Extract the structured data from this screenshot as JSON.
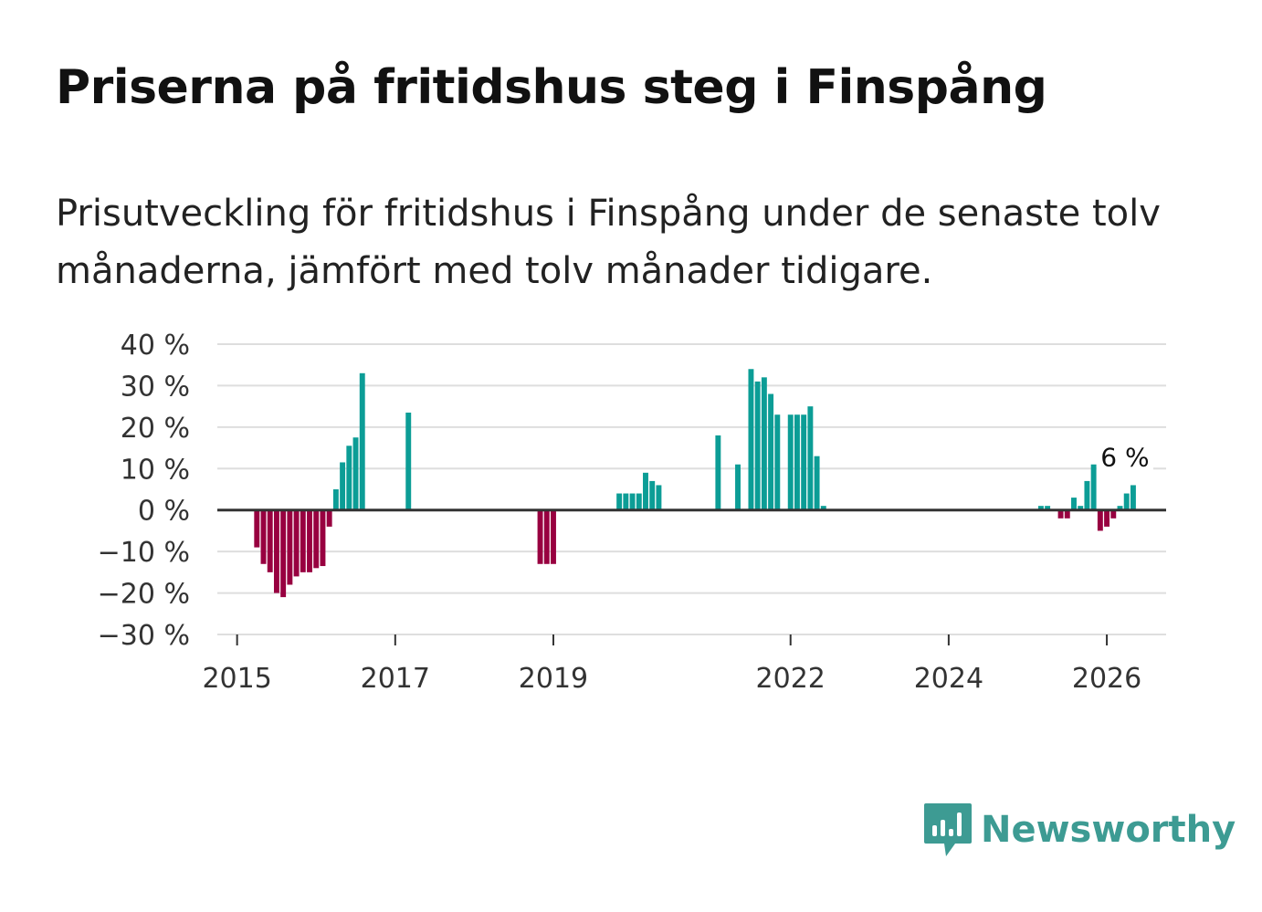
{
  "title": "Priserna på fritidshus steg i Finspång",
  "subtitle": "Prisutveckling för fritidshus i Finspång under de senaste tolv månaderna, jämfört med tolv månader tidigare.",
  "brand": {
    "name": "Newsworthy",
    "color": "#3d9b93",
    "icon": "newsworthy-logo-icon"
  },
  "colors": {
    "positive": "#0c9d96",
    "negative": "#980040",
    "grid": "#dedede",
    "axis": "#333333"
  },
  "chart_data": {
    "type": "bar",
    "title": "Priserna på fritidshus steg i Finspång",
    "ylabel": "",
    "xlabel": "",
    "ylim": [
      -30,
      40
    ],
    "y_ticks": [
      40,
      30,
      20,
      10,
      0,
      -10,
      -20,
      -30
    ],
    "y_tick_labels": [
      "40 %",
      "30 %",
      "20 %",
      "10 %",
      "0 %",
      "−10 %",
      "−20 %",
      "−30 %"
    ],
    "x_ticks": [
      2015,
      2017,
      2019,
      2022,
      2024,
      2026
    ],
    "x_range": [
      2014.75,
      2026.75
    ],
    "last_value_label": "6 %",
    "series": [
      {
        "name": "Prisutveckling",
        "points": [
          {
            "date": "2015-04",
            "value": -9
          },
          {
            "date": "2015-05",
            "value": -13
          },
          {
            "date": "2015-06",
            "value": -15
          },
          {
            "date": "2015-07",
            "value": -20
          },
          {
            "date": "2015-08",
            "value": -21
          },
          {
            "date": "2015-09",
            "value": -18
          },
          {
            "date": "2015-10",
            "value": -16
          },
          {
            "date": "2015-11",
            "value": -15
          },
          {
            "date": "2015-12",
            "value": -15
          },
          {
            "date": "2016-01",
            "value": -14
          },
          {
            "date": "2016-02",
            "value": -13.5
          },
          {
            "date": "2016-03",
            "value": -4
          },
          {
            "date": "2016-04",
            "value": 5
          },
          {
            "date": "2016-05",
            "value": 11.5
          },
          {
            "date": "2016-06",
            "value": 15.5
          },
          {
            "date": "2016-07",
            "value": 17.5
          },
          {
            "date": "2016-08",
            "value": 33
          },
          {
            "date": "2017-03",
            "value": 23.5
          },
          {
            "date": "2018-11",
            "value": -13
          },
          {
            "date": "2018-12",
            "value": -13
          },
          {
            "date": "2019-01",
            "value": -13
          },
          {
            "date": "2019-11",
            "value": 4
          },
          {
            "date": "2019-12",
            "value": 4
          },
          {
            "date": "2020-01",
            "value": 4
          },
          {
            "date": "2020-02",
            "value": 4
          },
          {
            "date": "2020-03",
            "value": 9
          },
          {
            "date": "2020-04",
            "value": 7
          },
          {
            "date": "2020-05",
            "value": 6
          },
          {
            "date": "2021-02",
            "value": 18
          },
          {
            "date": "2021-05",
            "value": 11
          },
          {
            "date": "2021-07",
            "value": 34
          },
          {
            "date": "2021-08",
            "value": 31
          },
          {
            "date": "2021-09",
            "value": 32
          },
          {
            "date": "2021-10",
            "value": 28
          },
          {
            "date": "2021-11",
            "value": 23
          },
          {
            "date": "2022-01",
            "value": 23
          },
          {
            "date": "2022-02",
            "value": 23
          },
          {
            "date": "2022-03",
            "value": 23
          },
          {
            "date": "2022-04",
            "value": 25
          },
          {
            "date": "2022-05",
            "value": 13
          },
          {
            "date": "2022-06",
            "value": 1
          },
          {
            "date": "2025-03",
            "value": 1
          },
          {
            "date": "2025-04",
            "value": 1
          },
          {
            "date": "2025-06",
            "value": -2
          },
          {
            "date": "2025-07",
            "value": -2
          },
          {
            "date": "2025-08",
            "value": 3
          },
          {
            "date": "2025-09",
            "value": 1
          },
          {
            "date": "2025-10",
            "value": 7
          },
          {
            "date": "2025-11",
            "value": 11
          },
          {
            "date": "2025-12",
            "value": -5
          },
          {
            "date": "2026-01",
            "value": -4
          },
          {
            "date": "2026-02",
            "value": -2
          },
          {
            "date": "2026-03",
            "value": 1
          },
          {
            "date": "2026-04",
            "value": 4
          },
          {
            "date": "2026-05",
            "value": 6
          }
        ]
      }
    ]
  }
}
